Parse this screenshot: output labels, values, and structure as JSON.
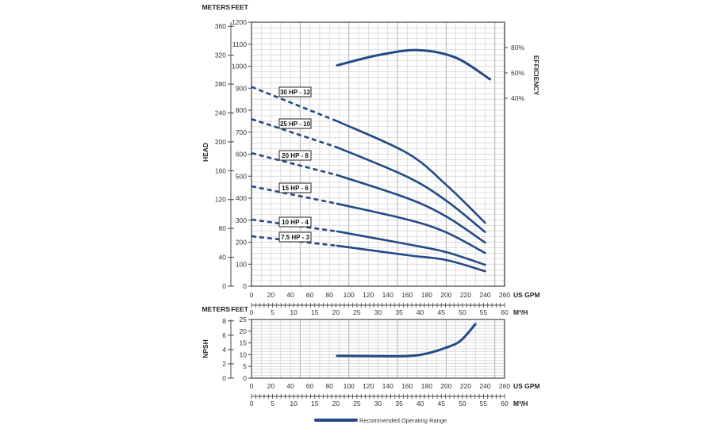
{
  "chart_data": [
    {
      "type": "line",
      "title": "",
      "ylabel": "HEAD",
      "y_units": [
        "METERS",
        "FEET"
      ],
      "y2label": "EFFICIENCY",
      "x_units": [
        "US GPM",
        "M³/H"
      ],
      "xlim": [
        0,
        260
      ],
      "x_ticks": [
        0,
        20,
        40,
        60,
        80,
        100,
        120,
        140,
        160,
        180,
        200,
        220,
        240,
        260
      ],
      "x2_ticks": [
        0,
        5,
        10,
        15,
        20,
        25,
        30,
        35,
        40,
        45,
        50,
        55,
        60
      ],
      "ylim_feet": [
        0,
        1200
      ],
      "y_ticks_feet": [
        0,
        100,
        200,
        300,
        400,
        500,
        600,
        700,
        800,
        900,
        1000,
        1100,
        1200
      ],
      "y_ticks_meters": [
        0,
        40,
        80,
        120,
        160,
        200,
        240,
        280,
        320,
        360
      ],
      "y2_ticks": [
        "40%",
        "60%",
        "80%"
      ],
      "grid": true,
      "series": [
        {
          "name": "30 HP - 12",
          "x": [
            0,
            88,
            160,
            200,
            240
          ],
          "values": [
            906,
            750,
            605,
            461,
            288
          ],
          "dashed_until": 88
        },
        {
          "name": "25 HP - 10",
          "x": [
            0,
            88,
            160,
            200,
            240
          ],
          "values": [
            760,
            631,
            497,
            389,
            246
          ],
          "dashed_until": 88
        },
        {
          "name": "20 HP - 8",
          "x": [
            0,
            88,
            160,
            200,
            240
          ],
          "values": [
            605,
            505,
            400,
            317,
            198
          ],
          "dashed_until": 88
        },
        {
          "name": "15 HP - 6",
          "x": [
            0,
            88,
            160,
            200,
            240
          ],
          "values": [
            454,
            375,
            303,
            245,
            151
          ],
          "dashed_until": 88
        },
        {
          "name": "10 HP - 4",
          "x": [
            0,
            88,
            160,
            200,
            240
          ],
          "values": [
            303,
            249,
            191,
            155,
            97
          ],
          "dashed_until": 88
        },
        {
          "name": "7.5 HP - 3",
          "x": [
            0,
            88,
            160,
            200,
            240
          ],
          "values": [
            227,
            184,
            141,
            119,
            68
          ],
          "dashed_until": 88
        }
      ],
      "efficiency": {
        "x": [
          88,
          130,
          171,
          210,
          245
        ],
        "values": [
          66,
          74,
          78,
          72,
          55
        ]
      }
    },
    {
      "type": "line",
      "ylabel": "NPSH",
      "y_units": [
        "METERS",
        "FEET"
      ],
      "xlim": [
        0,
        260
      ],
      "x_ticks": [
        0,
        20,
        40,
        60,
        80,
        100,
        120,
        140,
        160,
        180,
        200,
        220,
        240,
        260
      ],
      "x2_ticks": [
        0,
        5,
        10,
        15,
        20,
        25,
        30,
        35,
        40,
        45,
        50,
        55,
        60
      ],
      "x_units": [
        "US GPM",
        "M³/H"
      ],
      "ylim_feet": [
        0,
        25
      ],
      "y_ticks_feet": [
        0,
        5,
        10,
        15,
        20,
        25
      ],
      "y_ticks_meters": [
        0,
        2,
        4,
        6,
        8
      ],
      "grid": true,
      "series": [
        {
          "x": [
            88,
            120,
            160,
            180,
            200,
            215,
            230
          ],
          "values": [
            9.5,
            9.4,
            9.4,
            10.5,
            13,
            16,
            23
          ]
        }
      ]
    }
  ],
  "legend": {
    "label": "Recommended Operating Range"
  },
  "colors": {
    "curve": "#234a86",
    "grid": "#cfcfcf",
    "axis": "#444444"
  }
}
